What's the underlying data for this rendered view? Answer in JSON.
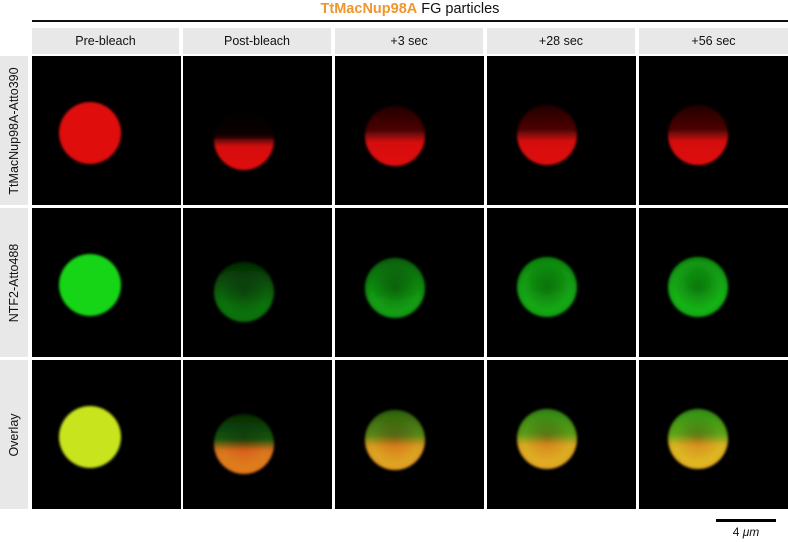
{
  "figure": {
    "title_accent": "TtMacNup98A",
    "title_rest": "FG particles",
    "accent_color": "#f0962a",
    "columns": [
      "Pre-bleach",
      "Post-bleach",
      "+3 sec",
      "+28 sec",
      "+56 sec"
    ],
    "rows": [
      {
        "label": "TtMacNup98A-Atto390",
        "channel": "red"
      },
      {
        "label": "NTF2-Atto488",
        "channel": "green"
      },
      {
        "label": "Overlay",
        "channel": "overlay"
      }
    ],
    "colors": {
      "red": "#e01010",
      "green": "#18d418",
      "yellow": "#c8e41a",
      "panel_bg": "#000000"
    },
    "scalebar": {
      "number": "4",
      "unit": "μm"
    }
  }
}
